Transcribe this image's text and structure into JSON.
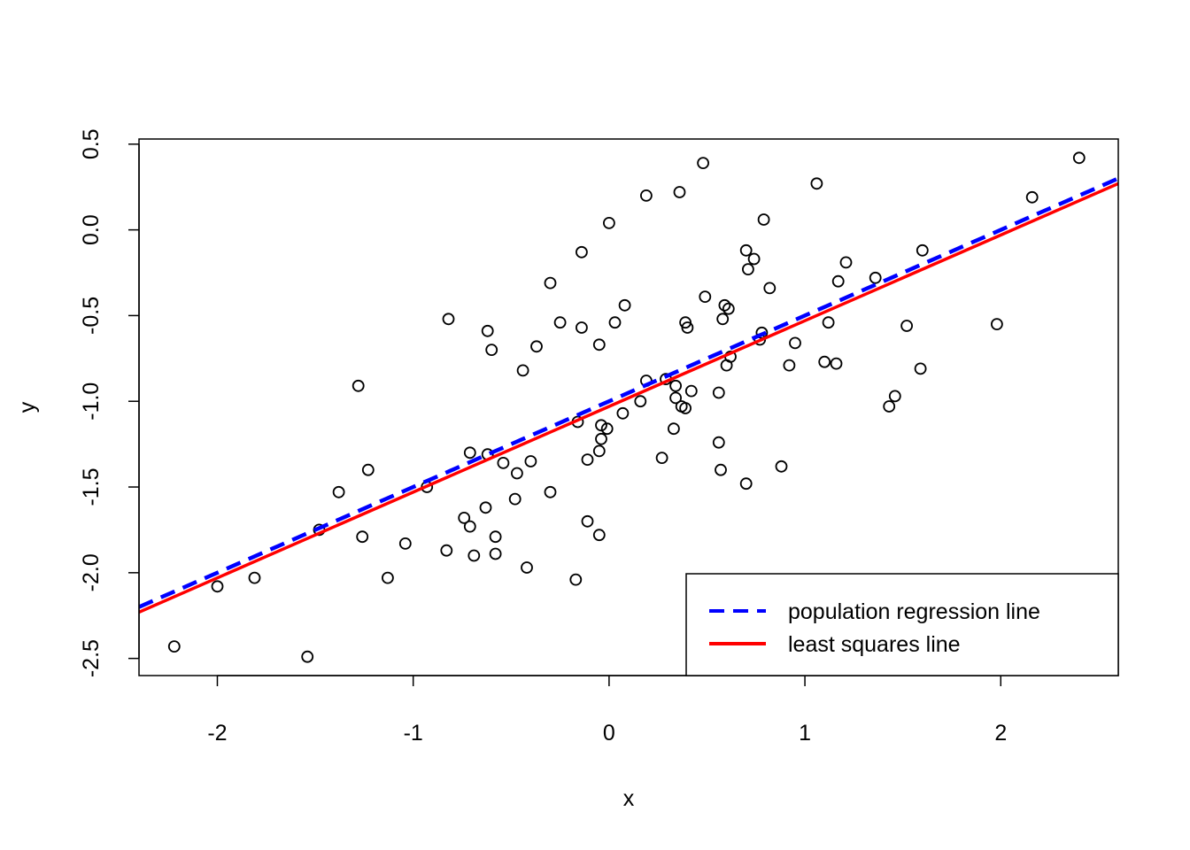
{
  "chart_data": {
    "type": "scatter",
    "title": "",
    "xlabel": "x",
    "ylabel": "y",
    "xlim": [
      -2.4,
      2.6
    ],
    "ylim": [
      -2.6,
      0.53
    ],
    "grid": false,
    "x_ticks": [
      -2,
      -1,
      0,
      1,
      2
    ],
    "x_tick_labels": [
      "-2",
      "-1",
      "0",
      "1",
      "2"
    ],
    "y_ticks": [
      -2.5,
      -2.0,
      -1.5,
      -1.0,
      -0.5,
      0.0,
      0.5
    ],
    "y_tick_labels": [
      "-2.5",
      "-2.0",
      "-1.5",
      "-1.0",
      "-0.5",
      "0.0",
      "0.5"
    ],
    "points": [
      [
        -2.22,
        -2.43
      ],
      [
        -2.0,
        -2.08
      ],
      [
        -1.81,
        -2.03
      ],
      [
        -1.54,
        -2.49
      ],
      [
        -1.48,
        -1.75
      ],
      [
        -1.38,
        -1.53
      ],
      [
        -1.28,
        -0.91
      ],
      [
        -1.26,
        -1.79
      ],
      [
        -1.23,
        -1.4
      ],
      [
        -1.13,
        -2.03
      ],
      [
        -1.04,
        -1.83
      ],
      [
        -0.93,
        -1.5
      ],
      [
        -0.83,
        -1.87
      ],
      [
        -0.82,
        -0.52
      ],
      [
        -0.74,
        -1.68
      ],
      [
        -0.71,
        -1.3
      ],
      [
        -0.71,
        -1.73
      ],
      [
        -0.69,
        -1.9
      ],
      [
        -0.63,
        -1.62
      ],
      [
        -0.62,
        -0.59
      ],
      [
        -0.62,
        -1.31
      ],
      [
        -0.6,
        -0.7
      ],
      [
        -0.58,
        -1.79
      ],
      [
        -0.58,
        -1.89
      ],
      [
        -0.54,
        -1.36
      ],
      [
        -0.48,
        -1.57
      ],
      [
        -0.47,
        -1.42
      ],
      [
        -0.44,
        -0.82
      ],
      [
        -0.42,
        -1.97
      ],
      [
        -0.4,
        -1.35
      ],
      [
        -0.37,
        -0.68
      ],
      [
        -0.3,
        -0.31
      ],
      [
        -0.3,
        -1.53
      ],
      [
        -0.25,
        -0.54
      ],
      [
        -0.17,
        -2.04
      ],
      [
        -0.16,
        -1.12
      ],
      [
        -0.14,
        -0.13
      ],
      [
        -0.14,
        -0.57
      ],
      [
        -0.11,
        -1.34
      ],
      [
        -0.11,
        -1.7
      ],
      [
        -0.05,
        -1.29
      ],
      [
        -0.05,
        -0.67
      ],
      [
        -0.05,
        -1.78
      ],
      [
        -0.04,
        -1.22
      ],
      [
        -0.04,
        -1.14
      ],
      [
        -0.01,
        -1.16
      ],
      [
        0.0,
        0.04
      ],
      [
        0.03,
        -0.54
      ],
      [
        0.07,
        -1.07
      ],
      [
        0.08,
        -0.44
      ],
      [
        0.16,
        -1.0
      ],
      [
        0.19,
        -0.88
      ],
      [
        0.19,
        0.2
      ],
      [
        0.27,
        -1.33
      ],
      [
        0.29,
        -0.87
      ],
      [
        0.33,
        -1.16
      ],
      [
        0.34,
        -0.91
      ],
      [
        0.34,
        -0.98
      ],
      [
        0.36,
        0.22
      ],
      [
        0.37,
        -1.03
      ],
      [
        0.39,
        -0.54
      ],
      [
        0.39,
        -1.04
      ],
      [
        0.4,
        -0.57
      ],
      [
        0.42,
        -0.94
      ],
      [
        0.48,
        0.39
      ],
      [
        0.49,
        -0.39
      ],
      [
        0.56,
        -1.24
      ],
      [
        0.56,
        -0.95
      ],
      [
        0.57,
        -1.4
      ],
      [
        0.58,
        -0.52
      ],
      [
        0.59,
        -0.44
      ],
      [
        0.6,
        -0.79
      ],
      [
        0.61,
        -0.46
      ],
      [
        0.62,
        -0.74
      ],
      [
        0.7,
        -0.12
      ],
      [
        0.7,
        -1.48
      ],
      [
        0.71,
        -0.23
      ],
      [
        0.74,
        -0.17
      ],
      [
        0.77,
        -0.64
      ],
      [
        0.78,
        -0.6
      ],
      [
        0.79,
        0.06
      ],
      [
        0.82,
        -0.34
      ],
      [
        0.88,
        -1.38
      ],
      [
        0.92,
        -0.79
      ],
      [
        0.95,
        -0.66
      ],
      [
        1.06,
        0.27
      ],
      [
        1.1,
        -0.77
      ],
      [
        1.12,
        -0.54
      ],
      [
        1.16,
        -0.78
      ],
      [
        1.17,
        -0.3
      ],
      [
        1.21,
        -0.19
      ],
      [
        1.36,
        -0.28
      ],
      [
        1.43,
        -1.03
      ],
      [
        1.46,
        -0.97
      ],
      [
        1.52,
        -0.56
      ],
      [
        1.59,
        -0.81
      ],
      [
        1.6,
        -0.12
      ],
      [
        1.98,
        -0.55
      ],
      [
        2.16,
        0.19
      ],
      [
        2.4,
        0.42
      ]
    ],
    "lines": [
      {
        "name": "population regression line",
        "intercept": -1.0,
        "slope": 0.5,
        "color": "#0000ff",
        "style": "dashed"
      },
      {
        "name": "least squares line",
        "intercept": -1.03,
        "slope": 0.5,
        "color": "#ff0000",
        "style": "solid"
      }
    ],
    "legend": {
      "position": "bottom-right",
      "entries": [
        {
          "label": "population regression line",
          "color": "#0000ff",
          "style": "dashed"
        },
        {
          "label": "least squares line",
          "color": "#ff0000",
          "style": "solid"
        }
      ]
    }
  }
}
